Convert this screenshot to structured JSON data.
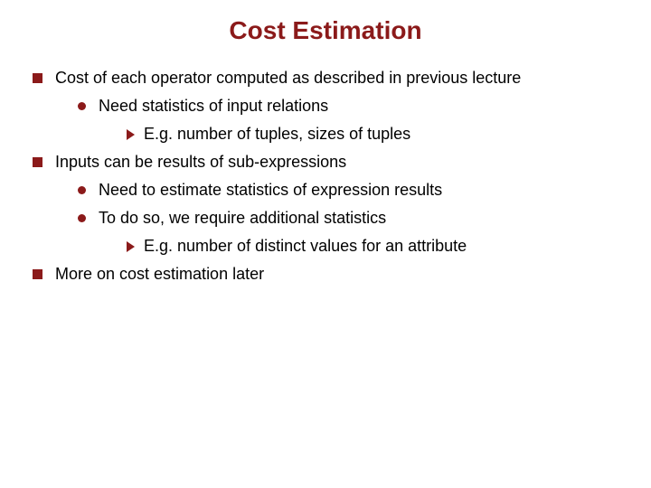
{
  "title": {
    "text": "Cost Estimation",
    "color": "#8b1a1a",
    "fontsize": 28
  },
  "colors": {
    "bullet": "#8b1a1a",
    "text": "#000000",
    "background": "#ffffff"
  },
  "fontsize": {
    "body": 18
  },
  "bullets": [
    {
      "level": 1,
      "text": "Cost of each operator computed as described in previous lecture"
    },
    {
      "level": 2,
      "text": "Need statistics of input relations"
    },
    {
      "level": 3,
      "text": "E.g. number of tuples, sizes of tuples"
    },
    {
      "level": 1,
      "text": "Inputs can be results of sub-expressions"
    },
    {
      "level": 2,
      "text": "Need to estimate statistics of expression results"
    },
    {
      "level": 2,
      "text": "To do so, we require additional statistics"
    },
    {
      "level": 3,
      "text": "E.g. number of distinct values for an attribute"
    },
    {
      "level": 1,
      "text": "More on cost estimation later"
    }
  ]
}
